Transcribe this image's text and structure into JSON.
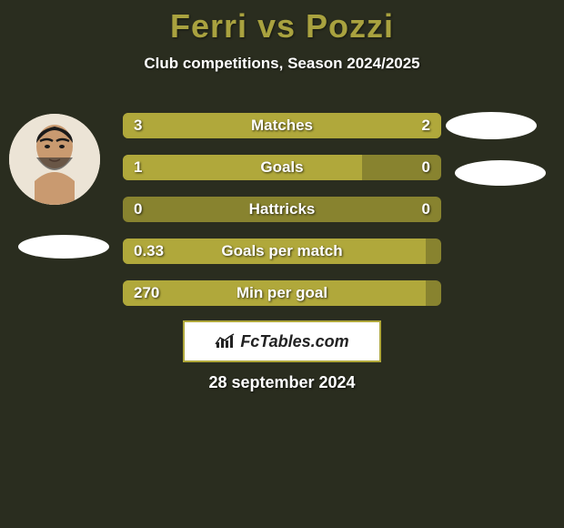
{
  "title": "Ferri vs Pozzi",
  "subtitle": "Club competitions, Season 2024/2025",
  "date": "28 september 2024",
  "logo_text": "FcTables.com",
  "colors": {
    "background": "#2a2d1f",
    "accent": "#a9a23f",
    "bar_dark": "#88832f",
    "bar_light": "#b0a83b",
    "text": "#ffffff"
  },
  "bars": [
    {
      "label": "Matches",
      "left": "3",
      "right": "2",
      "left_pct": 60,
      "right_pct": 40
    },
    {
      "label": "Goals",
      "left": "1",
      "right": "0",
      "left_pct": 75,
      "right_pct": 0
    },
    {
      "label": "Hattricks",
      "left": "0",
      "right": "0",
      "left_pct": 0,
      "right_pct": 0
    },
    {
      "label": "Goals per match",
      "left": "0.33",
      "right": "",
      "left_pct": 95,
      "right_pct": 0
    },
    {
      "label": "Min per goal",
      "left": "270",
      "right": "",
      "left_pct": 95,
      "right_pct": 0
    }
  ]
}
